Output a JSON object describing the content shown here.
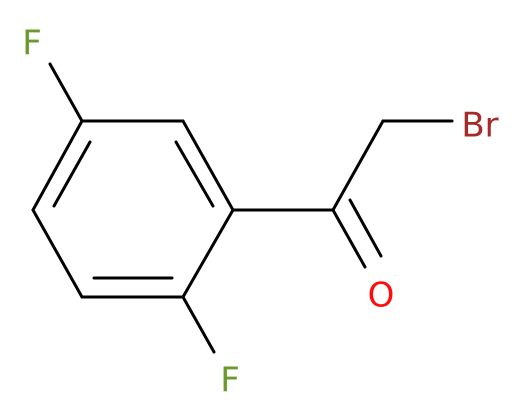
{
  "atoms": [
    {
      "label": "F"
    },
    {
      "label": "F"
    },
    {
      "label": "Br"
    },
    {
      "label": "O"
    }
  ]
}
